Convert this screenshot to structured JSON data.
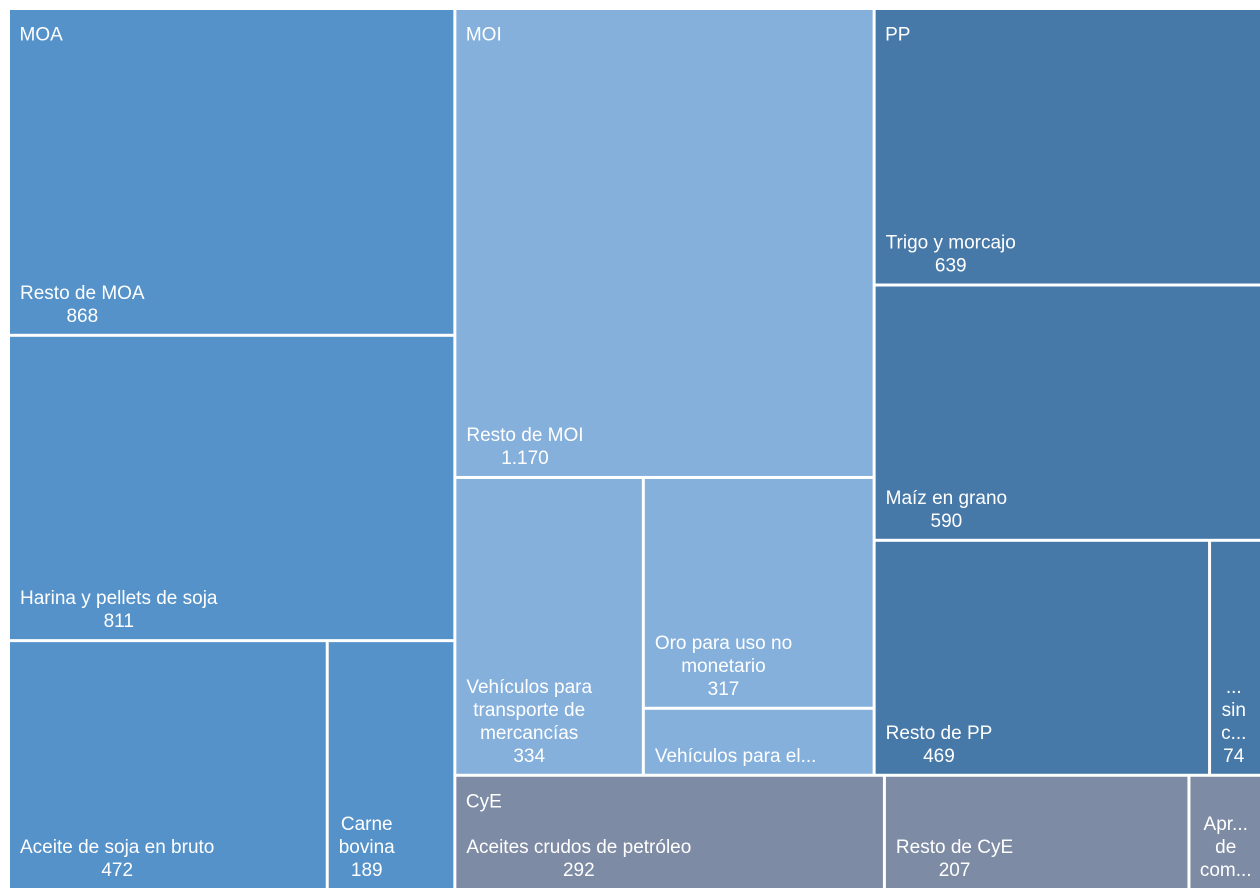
{
  "chart_data": {
    "type": "treemap",
    "groups": [
      {
        "name": "MOA",
        "color": "#5592c9",
        "labels": [
          "Resto de MOA",
          "Harina y pellets de soja",
          "Aceite de soja en bruto",
          "Carne bovina"
        ],
        "values": [
          868,
          811,
          472,
          189
        ],
        "value_labels": [
          "868",
          "811",
          "472",
          "189"
        ]
      },
      {
        "name": "MOI",
        "color": "#85b0dc",
        "labels": [
          "Resto de MOI",
          "Vehículos para transporte de mercancías",
          "Oro para uso no monetario",
          "Vehículos para el..."
        ],
        "values": [
          1170,
          334,
          317,
          92
        ],
        "value_labels": [
          "1.170",
          "334",
          "317",
          null
        ]
      },
      {
        "name": "PP",
        "color": "#4678a8",
        "labels": [
          "Trigo y morcajo",
          "Maíz en grano",
          "Resto de PP",
          "... sin c..."
        ],
        "values": [
          639,
          590,
          469,
          74
        ],
        "value_labels": [
          "639",
          "590",
          "469",
          "74"
        ]
      },
      {
        "name": "CyE",
        "color": "#7e8ba4",
        "labels": [
          "Aceites crudos de petróleo",
          "Resto de CyE",
          "Apr... de com..."
        ],
        "values": [
          292,
          207,
          50
        ],
        "value_labels": [
          "292",
          "207",
          null
        ]
      }
    ]
  }
}
